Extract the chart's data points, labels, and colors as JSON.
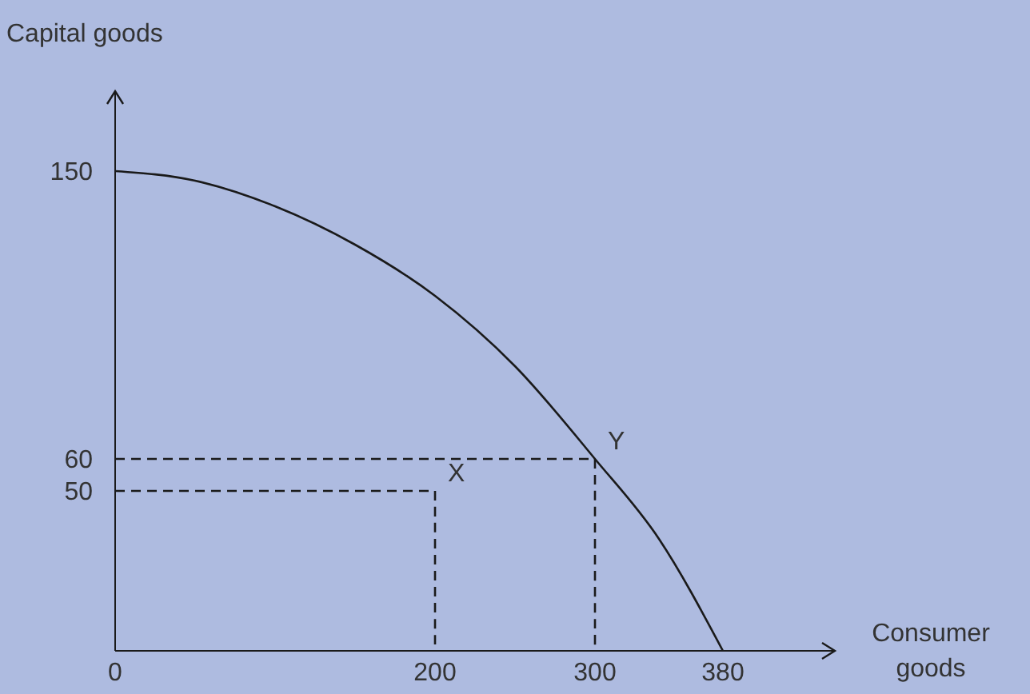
{
  "chart_data": {
    "type": "line",
    "xlabel": "Consumer goods",
    "ylabel": "Capital goods",
    "xlim": [
      0,
      450
    ],
    "ylim": [
      0,
      175
    ],
    "xticks": [
      0,
      200,
      300,
      380
    ],
    "yticks": [
      50,
      60,
      150
    ],
    "grid": false,
    "marker": "none",
    "series": [
      {
        "x": [
          0,
          50,
          100,
          150,
          200,
          250,
          300,
          340,
          380
        ],
        "values": [
          150,
          147,
          139,
          127,
          111,
          89,
          60,
          35,
          0
        ],
        "color": "#1a1a1a",
        "line_style": "solid"
      },
      {
        "x": [
          0,
          200,
          200
        ],
        "values": [
          50,
          50,
          0
        ],
        "color": "#1a1a1a",
        "line_style": "dashed"
      },
      {
        "x": [
          0,
          300,
          300
        ],
        "values": [
          60,
          60,
          0
        ],
        "color": "#1a1a1a",
        "line_style": "dashed"
      }
    ],
    "annotations": [
      {
        "text": "X",
        "x": 200,
        "y": 50
      },
      {
        "text": "Y",
        "x": 300,
        "y": 60
      }
    ]
  }
}
